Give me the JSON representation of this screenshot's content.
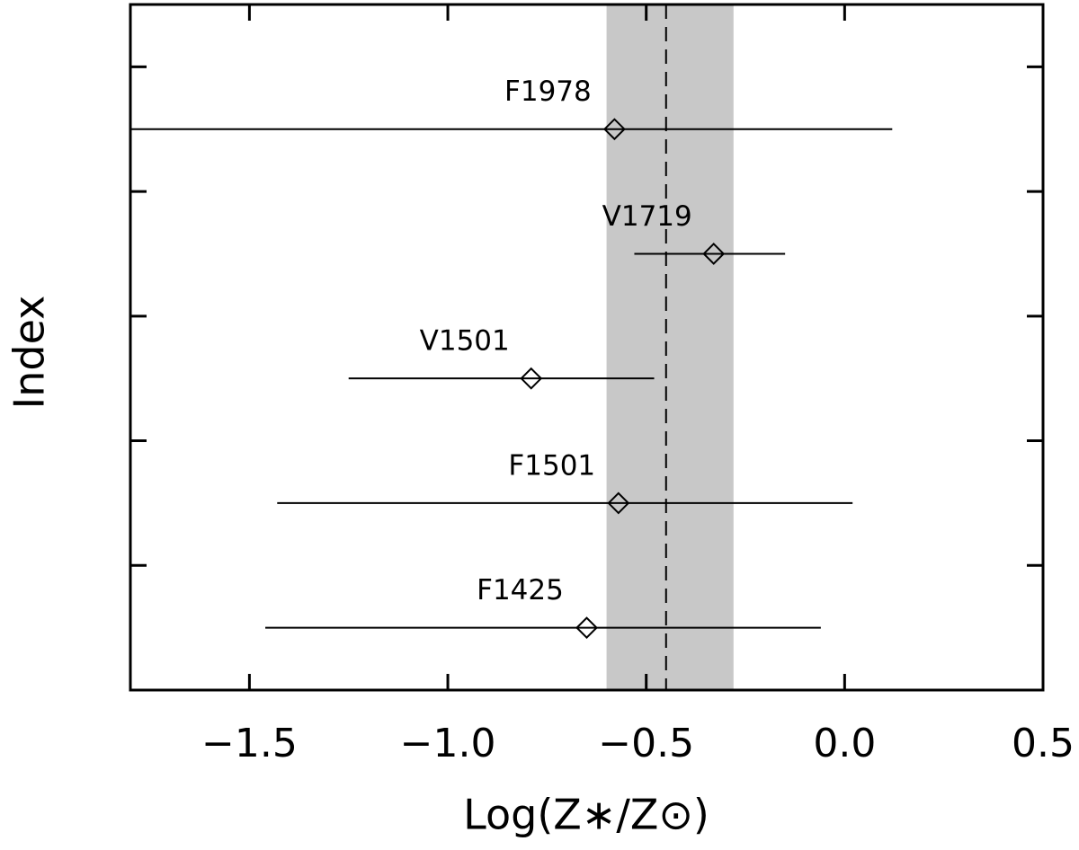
{
  "chart_data": {
    "type": "errorbar-scatter",
    "x_label": "Log(Z∗/Z⊙)",
    "y_label": "Index",
    "labels": [
      "F1425",
      "F1501",
      "V1501",
      "V1719",
      "F1978"
    ],
    "y": [
      1,
      2,
      3,
      4,
      5
    ],
    "x": [
      -0.65,
      -0.57,
      -0.79,
      -0.33,
      -0.58
    ],
    "x_low": [
      -1.46,
      -1.43,
      -1.25,
      -0.53,
      -1.8
    ],
    "x_high": [
      -0.06,
      0.02,
      -0.48,
      -0.15,
      0.12
    ],
    "band": [
      -0.6,
      -0.28
    ],
    "band_color": "#c8c8c8",
    "reference_line": -0.45,
    "color": "#000000",
    "xlim": [
      -1.8,
      0.5
    ],
    "ylim": [
      0.5,
      6.0
    ],
    "xticks": [
      {
        "value": -1.5,
        "label": "−1.5"
      },
      {
        "value": -1.0,
        "label": "−1.0"
      },
      {
        "value": -0.5,
        "label": "−0.5"
      },
      {
        "value": 0,
        "label": "0.0"
      },
      0.5
    ],
    "yticks": [
      1.5,
      2.5,
      3.5,
      4.5,
      5.5
    ]
  }
}
